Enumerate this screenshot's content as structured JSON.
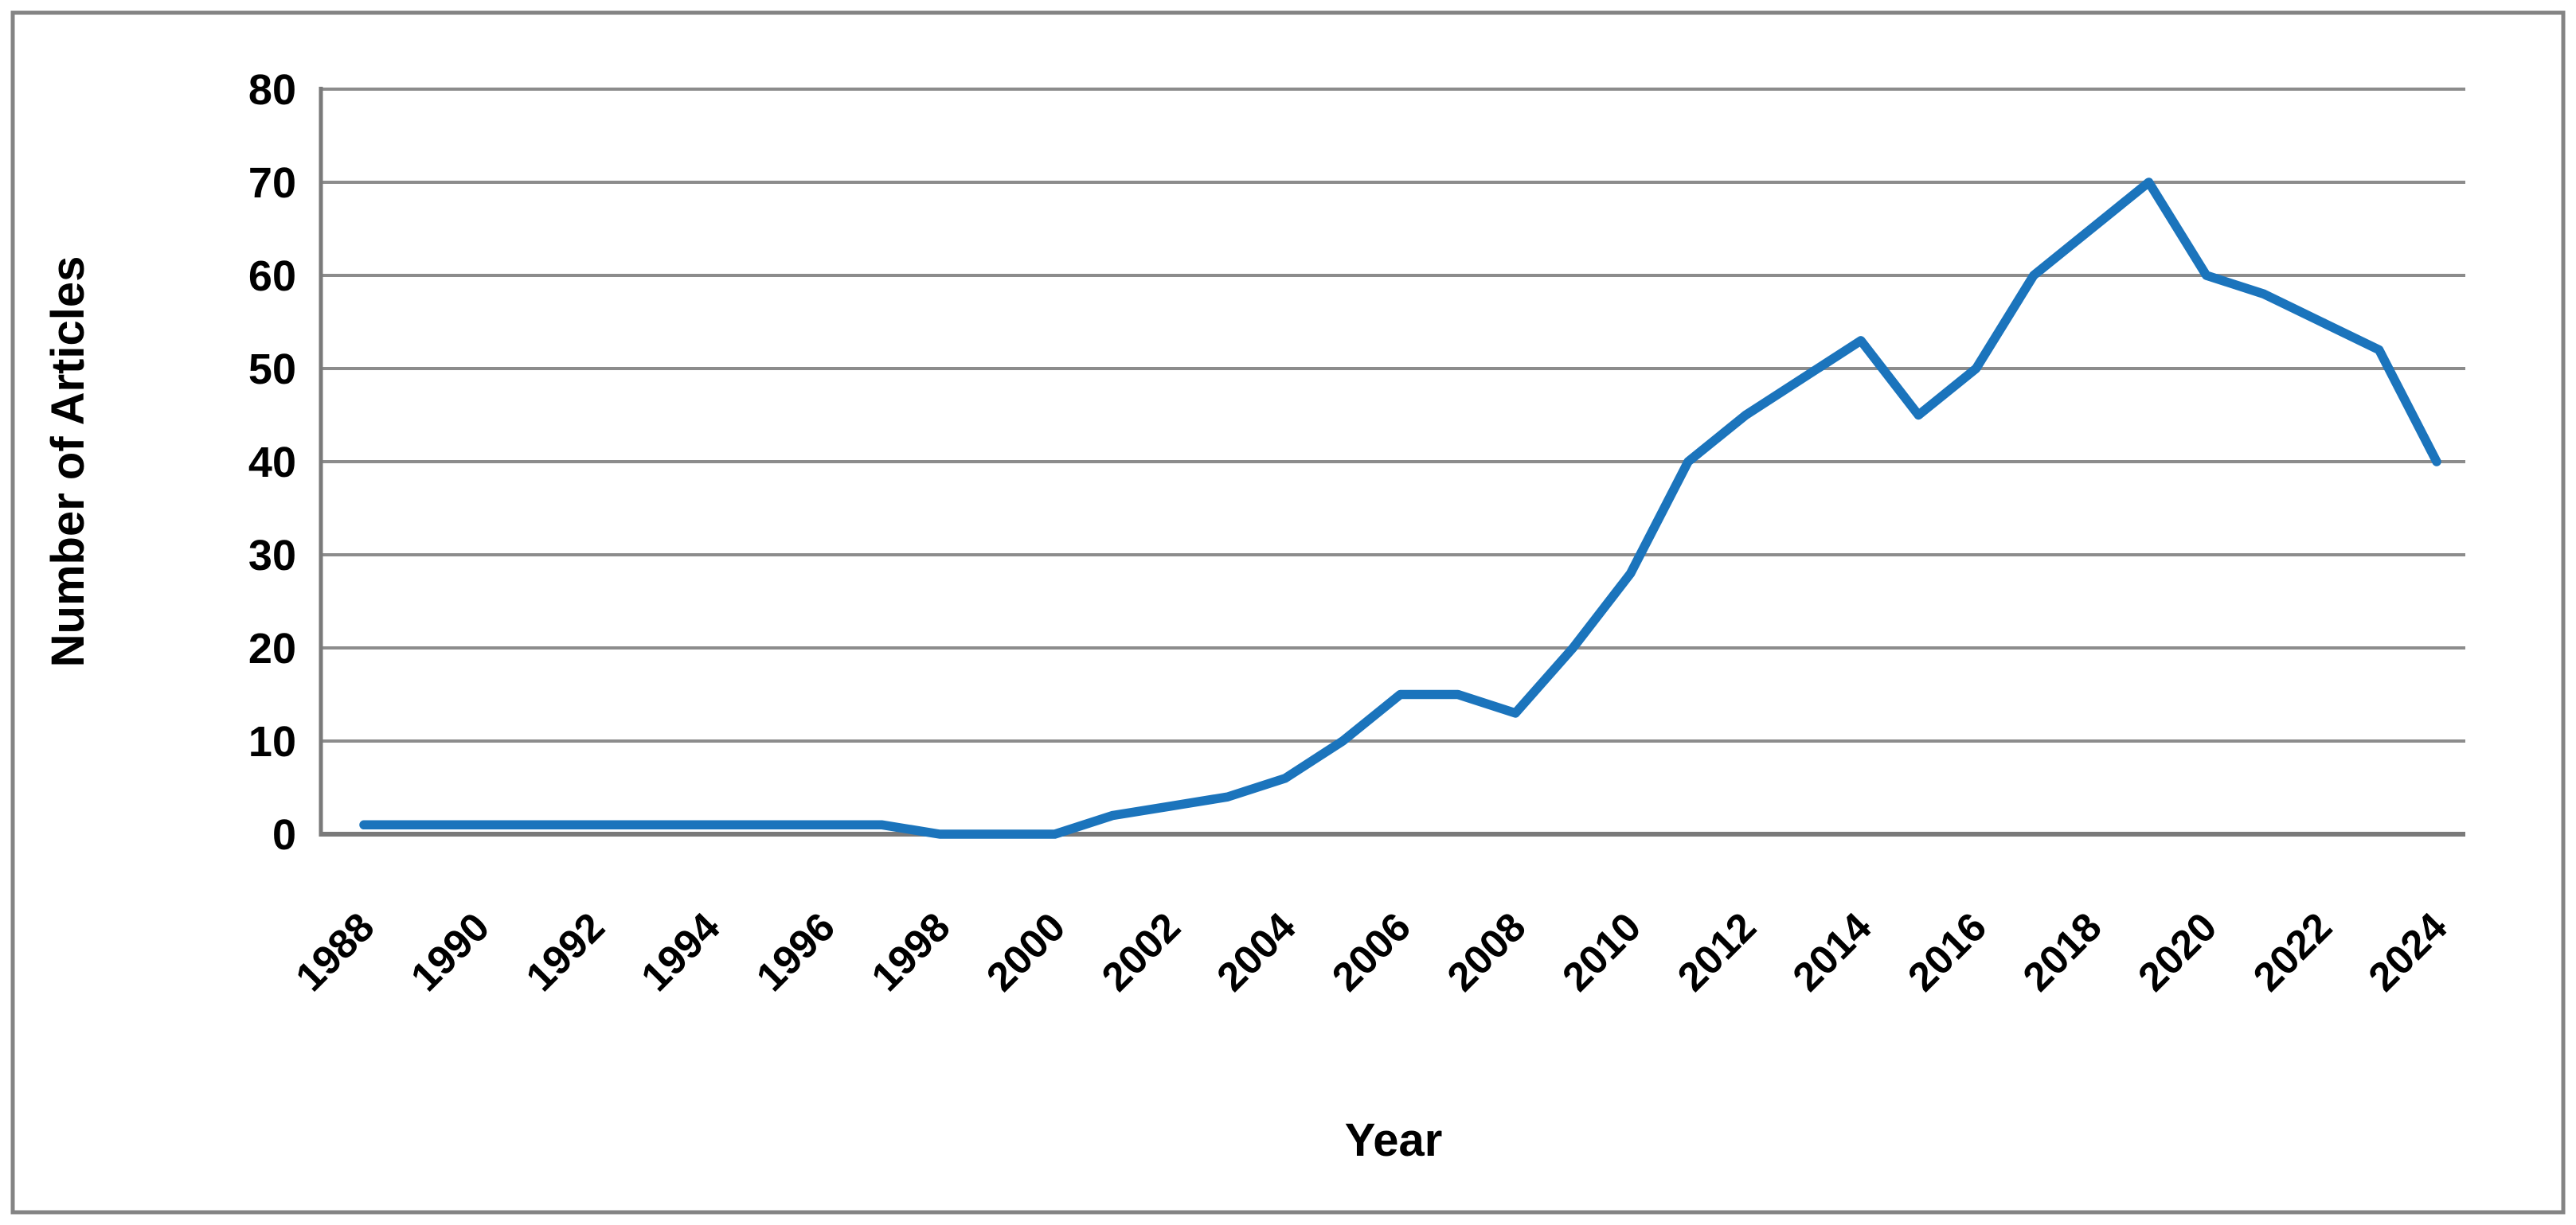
{
  "figure": {
    "background_color": "#ffffff",
    "outer_border_color": "#848484",
    "plot_border_color": "#7a7a7a",
    "gridline_color": "#8c8c8c",
    "text_color": "#000000"
  },
  "chart_data": {
    "type": "line",
    "title": "",
    "xlabel": "Year",
    "ylabel": "Number of Articles",
    "x": [
      1988,
      1989,
      1990,
      1991,
      1992,
      1993,
      1994,
      1995,
      1996,
      1997,
      1998,
      1999,
      2000,
      2001,
      2002,
      2003,
      2004,
      2005,
      2006,
      2007,
      2008,
      2009,
      2010,
      2011,
      2012,
      2013,
      2014,
      2015,
      2016,
      2017,
      2018,
      2019,
      2020,
      2021,
      2022,
      2023,
      2024
    ],
    "series": [
      {
        "name": "Number of Articles",
        "color": "#1b74bc",
        "values": [
          1,
          1,
          1,
          1,
          1,
          1,
          1,
          1,
          1,
          1,
          0,
          0,
          0,
          2,
          3,
          4,
          6,
          10,
          15,
          15,
          13,
          20,
          28,
          40,
          45,
          49,
          53,
          45,
          50,
          60,
          65,
          70,
          60,
          58,
          55,
          52,
          40
        ]
      }
    ],
    "ylim": [
      0,
      80
    ],
    "ytick_step": 10,
    "xtick_step": 2,
    "grid": true,
    "legend": "none"
  }
}
